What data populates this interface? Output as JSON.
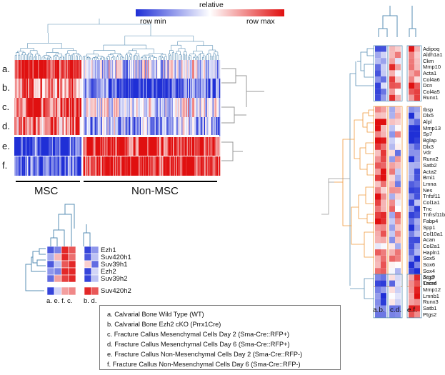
{
  "colorbar": {
    "title": "relative",
    "min_label": "row min",
    "max_label": "row max",
    "color_min": "#1f2fd6",
    "color_mid": "#ffffff",
    "color_max": "#e01010"
  },
  "main_heatmap": {
    "row_labels": [
      "a.",
      "b.",
      "c.",
      "d.",
      "e.",
      "f."
    ],
    "group_labels": [
      "MSC",
      "Non-MSC"
    ]
  },
  "small_heatmap": {
    "genes": [
      "Ezh1",
      "Suv420h1",
      "Suv39h1",
      "Ezh2",
      "Suv39h2"
    ],
    "outlier_gene": "Suv420h2",
    "column_labels": [
      "a. e. f. c.",
      "b. d."
    ]
  },
  "right_heatmap": {
    "group1_genes": [
      "Adipoq",
      "Aldh1a1",
      "Ckm",
      "Mmp10",
      "Acta1",
      "Col4a6",
      "Dcn",
      "Col4a5",
      "Runx1"
    ],
    "group2_genes": [
      "Ibsp",
      "Dlx5",
      "Alpl",
      "Mmp13",
      "Sp7",
      "Bglap",
      "Dlx3",
      "Vdr",
      "Runx2",
      "Satb2",
      "Acta2",
      "Bmi1",
      "Lmna",
      "Nes",
      "Tnfsf11",
      "Col1a1",
      "Tnc",
      "Tnfrsf11b",
      "Fabp4",
      "Spp1",
      "Col10a1",
      "Acan",
      "Col2a1",
      "Hapln1",
      "Sox5",
      "Sox6",
      "Sox4",
      "Sox9",
      "Tnmd"
    ],
    "group3_genes": [
      "Arg2",
      "Cxcr4",
      "Mmp12",
      "Lmnb1",
      "Runx3",
      "Satb1",
      "Ptgs2"
    ],
    "column_labels": [
      "a.b.",
      "c.d.",
      "e.f."
    ]
  },
  "sample_legend": [
    "a.   Calvarial Bone Wild Type (WT)",
    "b.   Calvarial Bone Ezh2 cKO (Prrx1Cre)",
    "c.   Fracture Callus Mesenchymal Cells Day 2 (Sma-Cre::RFP+)",
    "d.   Fracture Callus Mesenchymal Cells Day 6 (Sma-Cre::RFP+)",
    "e.   Fracture Callus Non-Mesenchymal Cells Day 2 (Sma-Cre::RFP-)",
    "f.   Fracture Callus Non-Mesenchymal Cells Day 6 (Sma-Cre::RFP-)"
  ]
}
